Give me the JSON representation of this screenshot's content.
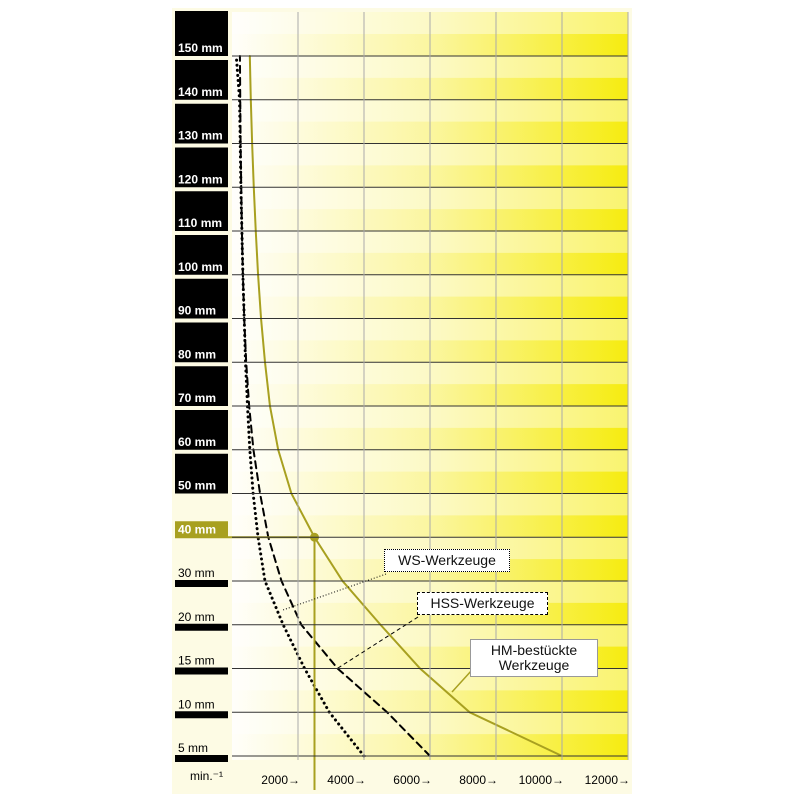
{
  "chart_data": {
    "type": "line",
    "orientation": "horizontal",
    "x_label": "min.⁻¹",
    "categories": [
      "5 mm",
      "10 mm",
      "15 mm",
      "20 mm",
      "30 mm",
      "40 mm",
      "50 mm",
      "60 mm",
      "70 mm",
      "80 mm",
      "90 mm",
      "100 mm",
      "110 mm",
      "120 mm",
      "130 mm",
      "140 mm",
      "150 mm"
    ],
    "xlim": [
      0,
      12000
    ],
    "xticks": [
      {
        "value": 2000,
        "label": "2000→"
      },
      {
        "value": 4000,
        "label": "4000→"
      },
      {
        "value": 6000,
        "label": "6000→"
      },
      {
        "value": 8000,
        "label": "8000→"
      },
      {
        "value": 10000,
        "label": "10000→"
      },
      {
        "value": 12000,
        "label": "12000→"
      }
    ],
    "series": [
      {
        "name": "WS-Werkzeuge",
        "color": "#000000",
        "style": "dotted",
        "values": [
          4000,
          2950,
          2200,
          1550,
          1000,
          790,
          640,
          540,
          470,
          410,
          370,
          330,
          300,
          270,
          250,
          230,
          130
        ]
      },
      {
        "name": "HSS-Werkzeuge",
        "color": "#000000",
        "style": "dashed",
        "values": [
          6000,
          4700,
          3200,
          2100,
          1500,
          1100,
          850,
          650,
          520,
          430,
          370,
          330,
          300,
          280,
          260,
          250,
          240
        ]
      },
      {
        "name": "HM-bestückte Werkzeuge",
        "color": "#a8a020",
        "style": "solid",
        "values": [
          10000,
          7200,
          5700,
          4500,
          3350,
          2500,
          1800,
          1400,
          1150,
          1000,
          880,
          790,
          720,
          660,
          610,
          570,
          540
        ]
      }
    ]
  }
}
